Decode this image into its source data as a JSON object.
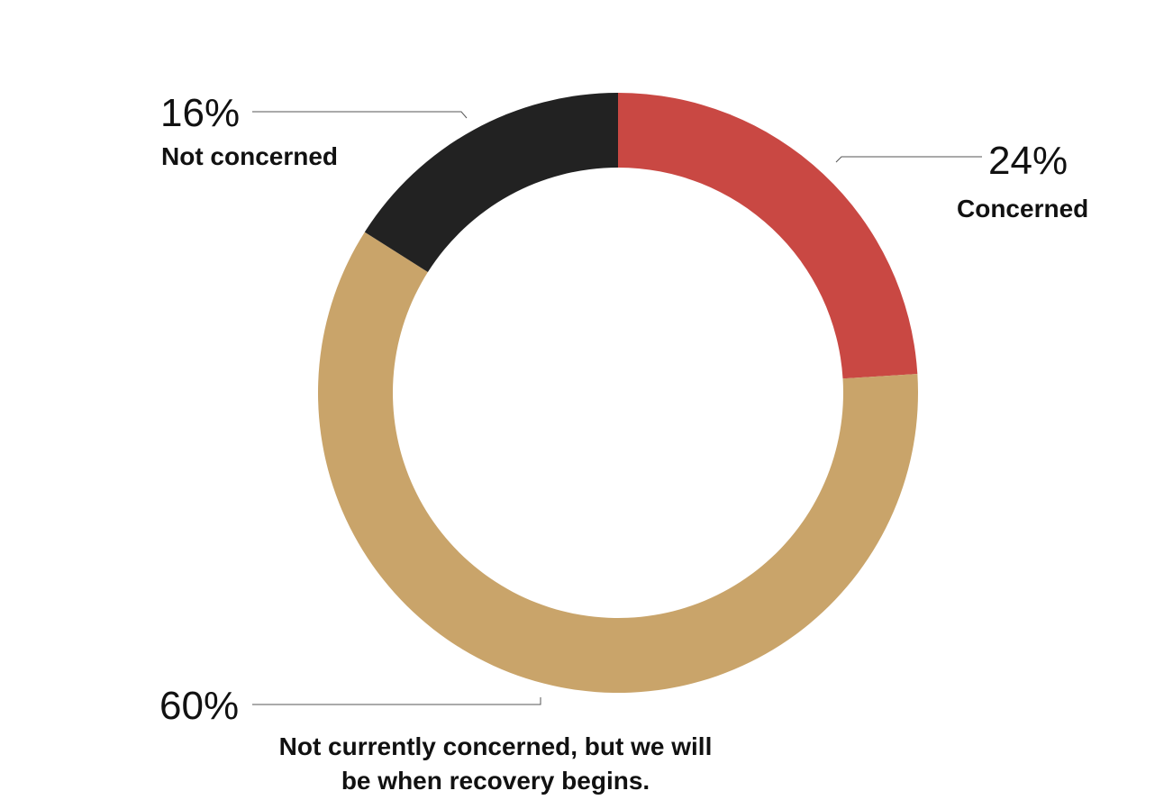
{
  "chart_data": {
    "type": "donut",
    "categories": [
      "Concerned",
      "Not currently concerned, but we will be when recovery begins.",
      "Not concerned"
    ],
    "values": [
      24,
      60,
      16
    ],
    "value_labels": [
      "24%",
      "60%",
      "16%"
    ],
    "colors": [
      "#c94843",
      "#c9a46a",
      "#222222"
    ]
  }
}
